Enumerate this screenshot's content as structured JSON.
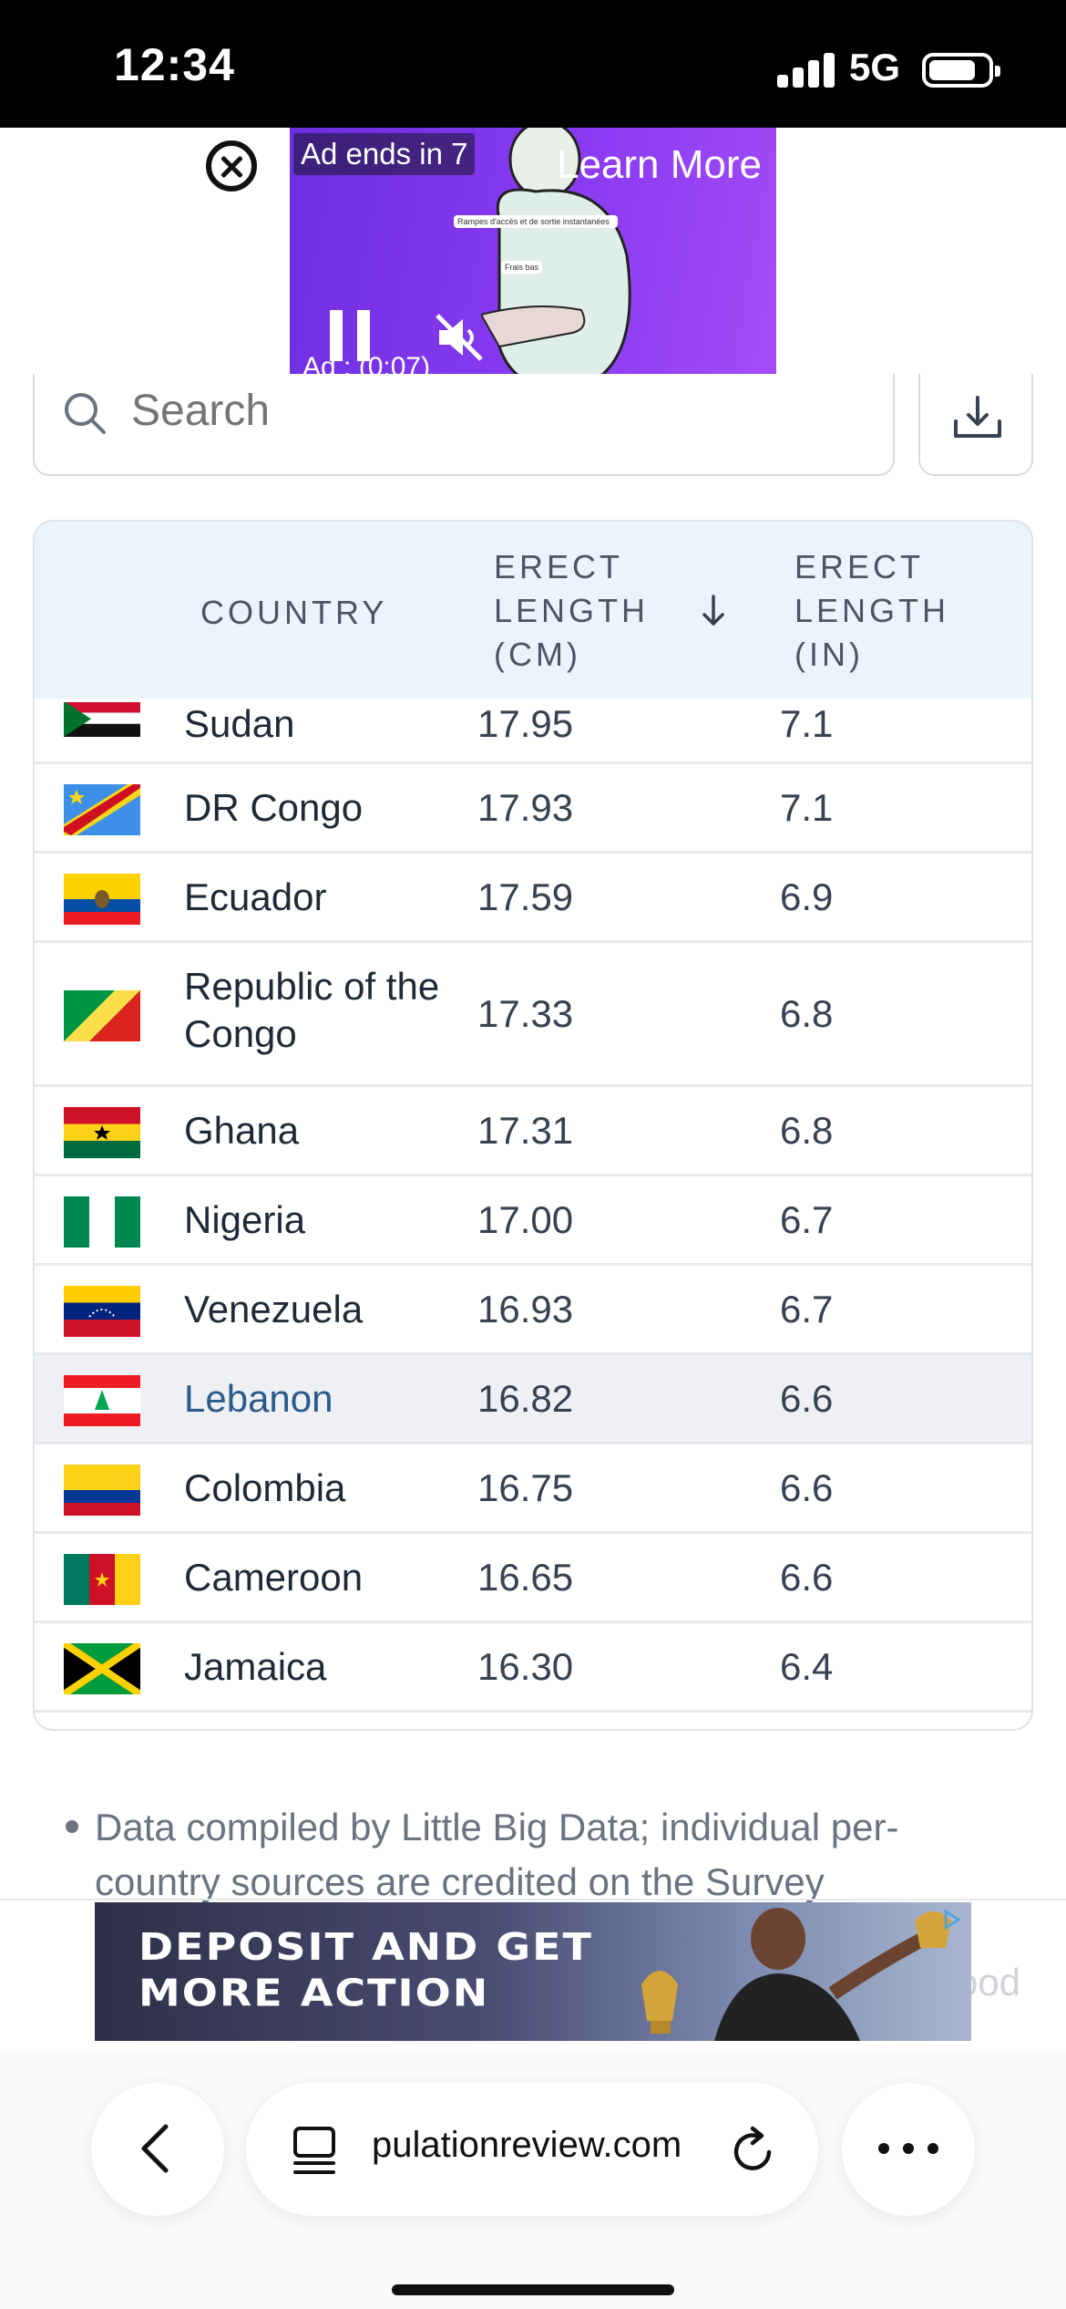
{
  "status_bar": {
    "time": "12:34",
    "network": "5G"
  },
  "video_ad": {
    "ends_label": "Ad ends in 7",
    "learn_more": "Learn More",
    "timer": "Ad : (0:07)",
    "chip_1": "Rampes d'accès et de sortie instantanées",
    "chip_2": "Frais bas"
  },
  "search": {
    "placeholder": "Search"
  },
  "table": {
    "headers": {
      "country": "COUNTRY",
      "cm": "ERECT LENGTH (CM)",
      "in": "ERECT LENGTH (IN)"
    },
    "rows": [
      {
        "country": "Sudan",
        "cm": "17.95",
        "in": "7.1"
      },
      {
        "country": "DR Congo",
        "cm": "17.93",
        "in": "7.1"
      },
      {
        "country": "Ecuador",
        "cm": "17.59",
        "in": "6.9"
      },
      {
        "country": "Republic of the Congo",
        "cm": "17.33",
        "in": "6.8"
      },
      {
        "country": "Ghana",
        "cm": "17.31",
        "in": "6.8"
      },
      {
        "country": "Nigeria",
        "cm": "17.00",
        "in": "6.7"
      },
      {
        "country": "Venezuela",
        "cm": "16.93",
        "in": "6.7"
      },
      {
        "country": "Lebanon",
        "cm": "16.82",
        "in": "6.6"
      },
      {
        "country": "Colombia",
        "cm": "16.75",
        "in": "6.6"
      },
      {
        "country": "Cameroon",
        "cm": "16.65",
        "in": "6.6"
      },
      {
        "country": "Jamaica",
        "cm": "16.30",
        "in": "6.4"
      }
    ]
  },
  "notes": {
    "text": "Data compiled by Little Big Data; individual per-country sources are credited on the Survey",
    "faded_tail": "ood"
  },
  "banner_ad": {
    "line_1": "DEPOSIT AND GET",
    "line_2": "MORE ACTION"
  },
  "browser": {
    "url": "pulationreview.com"
  },
  "colors": {
    "header_bg": "#eaf4fd",
    "link": "#2b5a8a",
    "highlight_row": "#eef0f4"
  }
}
